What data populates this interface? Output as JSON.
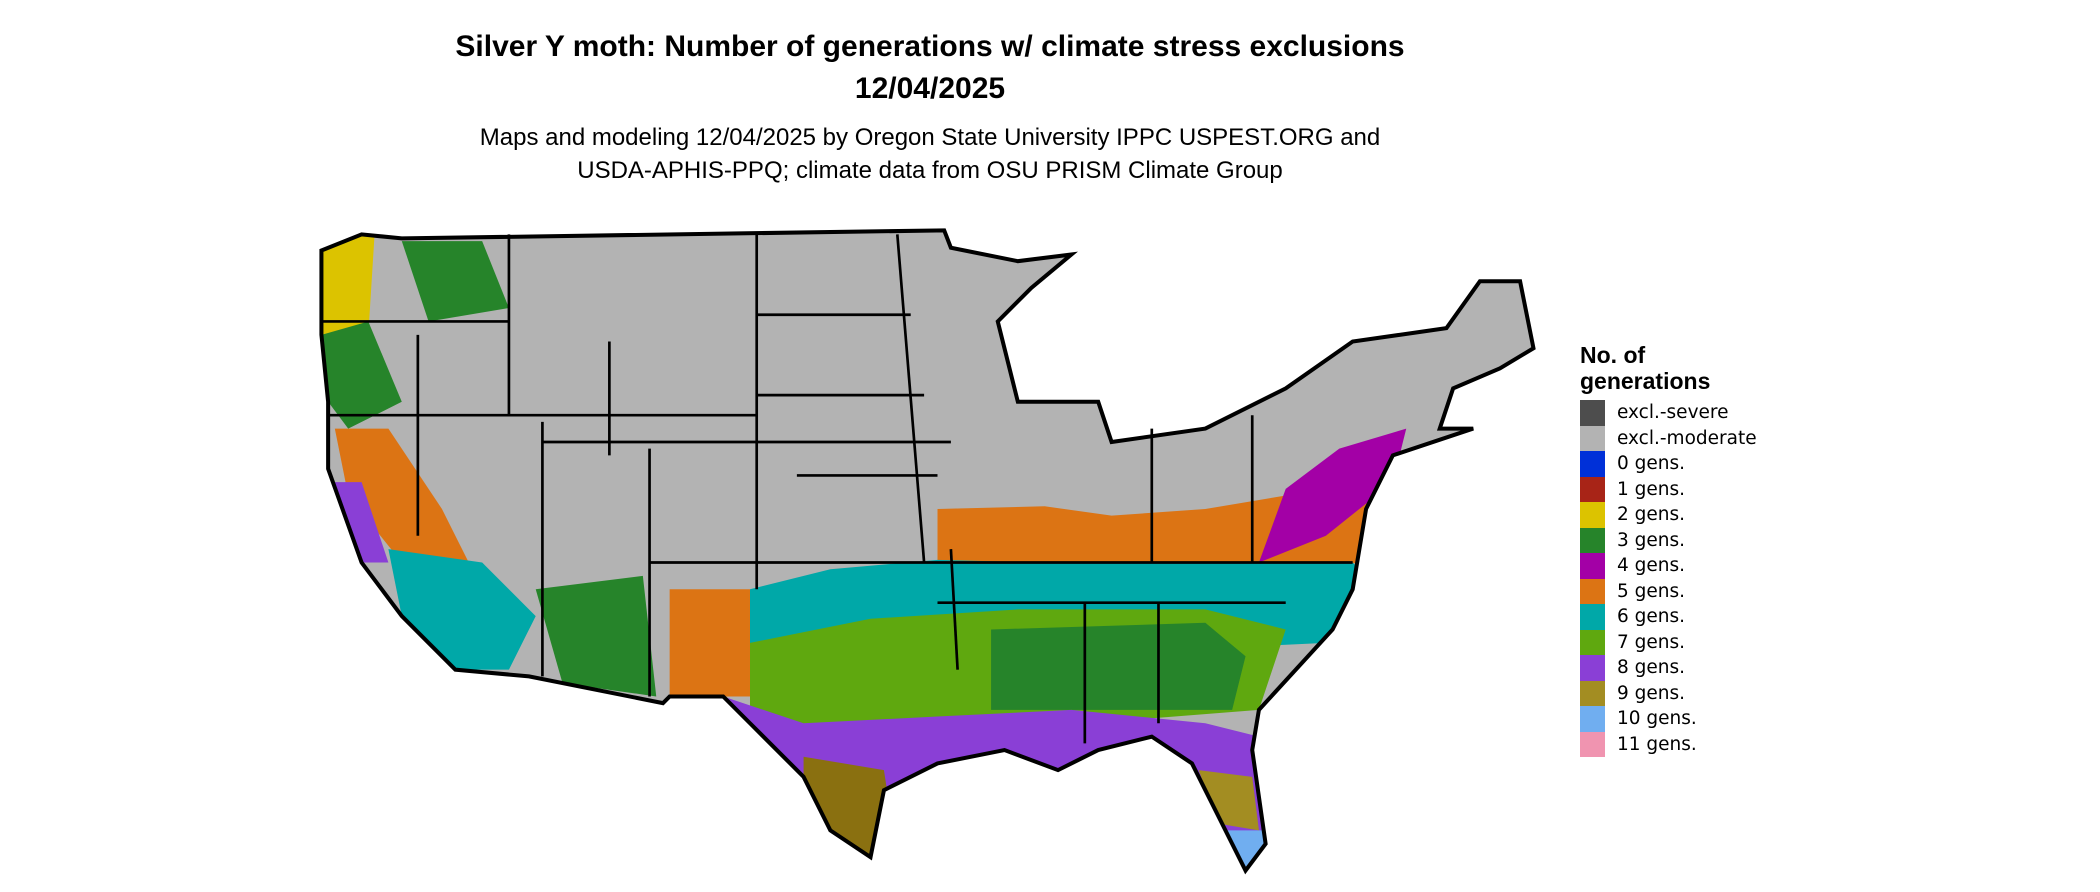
{
  "title": {
    "line1": "Silver Y moth: Number of generations w/ climate stress exclusions",
    "line2": "12/04/2025"
  },
  "subtitle": {
    "line1": "Maps and modeling 12/04/2025 by Oregon State University IPPC USPEST.ORG and",
    "line2": "USDA-APHIS-PPQ; climate data from OSU PRISM Climate Group"
  },
  "legend": {
    "title": "No. of generations",
    "items": [
      {
        "label": "excl.-severe",
        "color": "#4d4d4d"
      },
      {
        "label": "excl.-moderate",
        "color": "#b3b3b3"
      },
      {
        "label": "0 gens.",
        "color": "#0030d8"
      },
      {
        "label": "1 gens.",
        "color": "#a82417"
      },
      {
        "label": "2 gens.",
        "color": "#dcc300"
      },
      {
        "label": "3 gens.",
        "color": "#26842a"
      },
      {
        "label": "4 gens.",
        "color": "#a300a6"
      },
      {
        "label": "5 gens.",
        "color": "#dc7414"
      },
      {
        "label": "6 gens.",
        "color": "#00a8a8"
      },
      {
        "label": "7 gens.",
        "color": "#5fa80f"
      },
      {
        "label": "8 gens.",
        "color": "#8a3fd6"
      },
      {
        "label": "9 gens.",
        "color": "#a38d22"
      },
      {
        "label": "10 gens.",
        "color": "#70aef0"
      },
      {
        "label": "11 gens.",
        "color": "#f094b0"
      }
    ]
  }
}
